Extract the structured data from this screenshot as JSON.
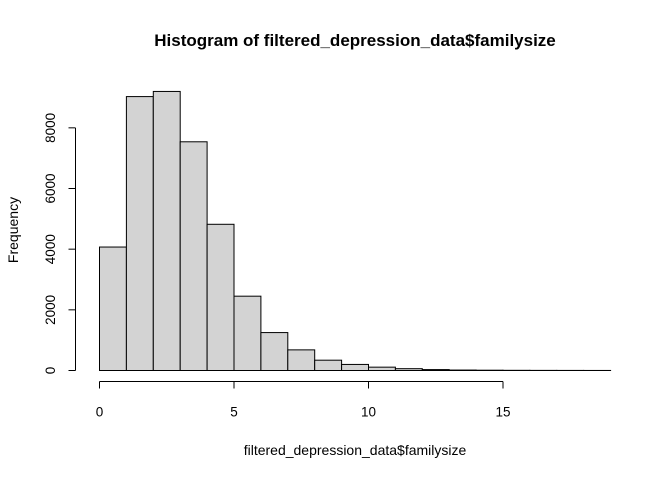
{
  "chart_data": {
    "type": "bar",
    "title": "Histogram of filtered_depression_data$familysize",
    "xlabel": "filtered_depression_data$familysize",
    "ylabel": "Frequency",
    "bin_width": 1,
    "bins": [
      {
        "start": 0,
        "end": 1,
        "count": 4070
      },
      {
        "start": 1,
        "end": 2,
        "count": 9030
      },
      {
        "start": 2,
        "end": 3,
        "count": 9200
      },
      {
        "start": 3,
        "end": 4,
        "count": 7540
      },
      {
        "start": 4,
        "end": 5,
        "count": 4820
      },
      {
        "start": 5,
        "end": 6,
        "count": 2450
      },
      {
        "start": 6,
        "end": 7,
        "count": 1250
      },
      {
        "start": 7,
        "end": 8,
        "count": 680
      },
      {
        "start": 8,
        "end": 9,
        "count": 340
      },
      {
        "start": 9,
        "end": 10,
        "count": 200
      },
      {
        "start": 10,
        "end": 11,
        "count": 110
      },
      {
        "start": 11,
        "end": 12,
        "count": 60
      },
      {
        "start": 12,
        "end": 13,
        "count": 30
      },
      {
        "start": 13,
        "end": 14,
        "count": 15
      },
      {
        "start": 14,
        "end": 15,
        "count": 10
      },
      {
        "start": 15,
        "end": 16,
        "count": 6
      },
      {
        "start": 16,
        "end": 17,
        "count": 4
      },
      {
        "start": 17,
        "end": 18,
        "count": 3
      },
      {
        "start": 18,
        "end": 19,
        "count": 2
      }
    ],
    "xlim": [
      0,
      19
    ],
    "ylim": [
      0,
      9200
    ],
    "x_ticks": [
      0,
      5,
      10,
      15
    ],
    "y_ticks": [
      0,
      2000,
      4000,
      6000,
      8000
    ],
    "grid": false,
    "legend": false
  }
}
